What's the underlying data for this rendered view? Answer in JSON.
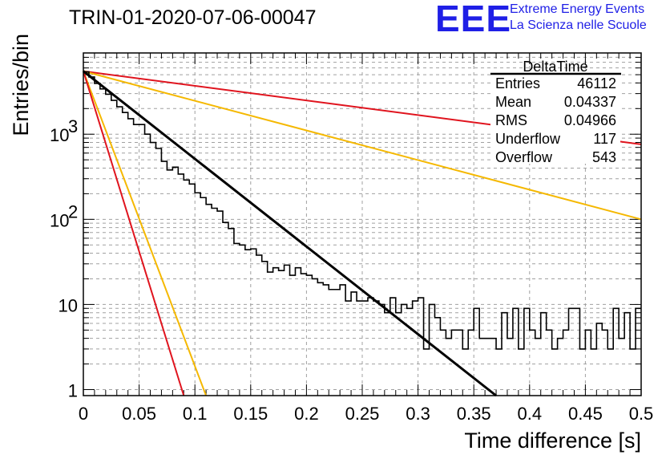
{
  "header": {
    "run_title": "TRIN-01-2020-07-06-00047",
    "logo_text": "EEE",
    "logo_line1": "Extreme Energy Events",
    "logo_line2": "La Scienza nelle Scuole",
    "logo_color": "#1f1fe6"
  },
  "stats": {
    "title": "DeltaTime",
    "rows": [
      {
        "label": "Entries",
        "value": "46112"
      },
      {
        "label": "Mean",
        "value": "0.04337"
      },
      {
        "label": "RMS",
        "value": "0.04966"
      },
      {
        "label": "Underflow",
        "value": "117"
      },
      {
        "label": "Overflow",
        "value": "543"
      }
    ]
  },
  "chart_data": {
    "type": "line",
    "xlabel": "Time difference [s]",
    "ylabel": "Entries/bin",
    "xlim": [
      0,
      0.5
    ],
    "ylim": [
      0.85,
      9000
    ],
    "yscale": "log",
    "grid": true,
    "x_ticks": [
      "0",
      "0.05",
      "0.1",
      "0.15",
      "0.2",
      "0.25",
      "0.3",
      "0.35",
      "0.4",
      "0.45",
      "0.5"
    ],
    "y_ticks": [
      {
        "value": 1,
        "label": "1"
      },
      {
        "value": 10,
        "label": "10"
      },
      {
        "value": 100,
        "label": "10",
        "exp": "2"
      },
      {
        "value": 1000,
        "label": "10",
        "exp": "3"
      }
    ],
    "colors": {
      "histogram": "#000000",
      "fit": "#000000",
      "red": "#e0141e",
      "yellow": "#f5b800"
    },
    "histogram": {
      "bin_width": 0.005,
      "values": [
        5400,
        4700,
        3950,
        3400,
        2950,
        2500,
        2100,
        1800,
        1520,
        1300,
        1300,
        1000,
        800,
        680,
        480,
        380,
        410,
        340,
        290,
        260,
        205,
        180,
        150,
        135,
        125,
        92,
        78,
        52,
        50,
        44,
        45,
        38,
        32,
        24,
        27,
        25,
        29,
        22,
        27,
        23,
        22,
        20,
        18,
        17,
        15,
        15,
        17,
        11,
        14,
        11,
        11,
        12,
        11,
        10,
        8,
        12,
        8,
        10,
        9,
        11,
        12,
        3,
        10,
        7,
        5,
        4,
        5,
        5,
        3,
        5,
        9,
        4,
        4,
        4,
        3,
        8,
        4,
        9,
        3,
        9,
        5,
        4,
        8,
        5,
        3,
        4,
        5,
        9,
        9,
        3,
        5,
        3,
        6,
        5,
        3,
        9,
        4,
        8,
        3,
        9
      ]
    },
    "fit_line": [
      [
        0,
        5500
      ],
      [
        0.37,
        0.85
      ]
    ],
    "lines": [
      {
        "color": "red",
        "points": [
          [
            0,
            5500
          ],
          [
            0.5,
            760
          ]
        ]
      },
      {
        "color": "yellow",
        "points": [
          [
            0,
            5500
          ],
          [
            0.5,
            100
          ]
        ]
      },
      {
        "color": "yellow",
        "points": [
          [
            0,
            5500
          ],
          [
            0.11,
            0.85
          ]
        ]
      },
      {
        "color": "red",
        "points": [
          [
            0,
            5500
          ],
          [
            0.09,
            0.85
          ]
        ]
      }
    ]
  }
}
